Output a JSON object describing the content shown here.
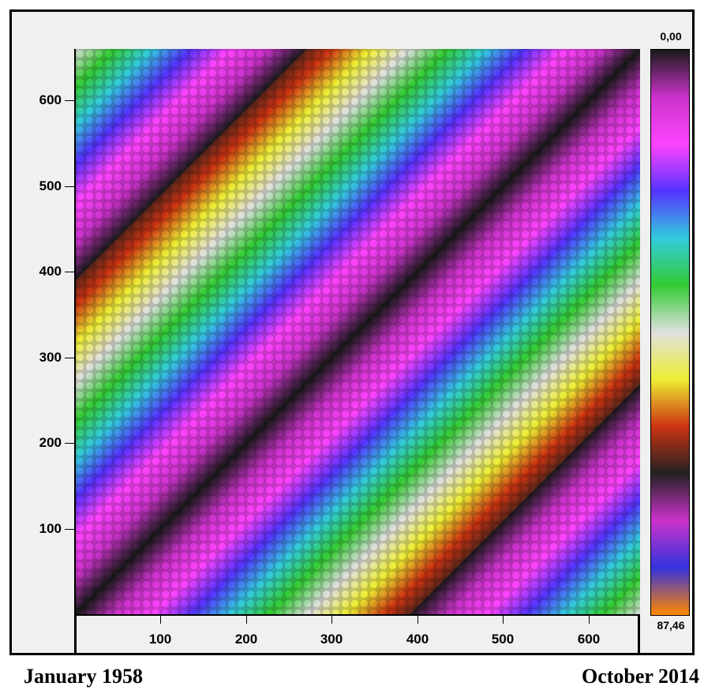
{
  "chart_data": {
    "type": "heatmap",
    "title": "",
    "xlabel": "",
    "ylabel": "",
    "xlim": [
      0,
      660
    ],
    "ylim": [
      0,
      660
    ],
    "x_ticks": [
      "100",
      "200",
      "300",
      "400",
      "500",
      "600"
    ],
    "y_ticks": [
      "100",
      "200",
      "300",
      "400",
      "500",
      "600"
    ],
    "x_tick_values": [
      100,
      200,
      300,
      400,
      500,
      600
    ],
    "y_tick_values": [
      100,
      200,
      300,
      400,
      500,
      600
    ],
    "colorbar": {
      "min_label": "0,00",
      "max_label": "87,46",
      "min": 0.0,
      "max": 87.46,
      "colors": [
        "#1a1a1a",
        "#cc33cc",
        "#ff44ff",
        "#5533ff",
        "#33ccdd",
        "#33cc33",
        "#e0e0e0",
        "#eeee33",
        "#cc3311",
        "#222222",
        "#cc33cc",
        "#3333dd",
        "#ff8800"
      ]
    },
    "description_free_values": {
      "diagonal_value": 0,
      "band_period": 390
    }
  },
  "captions": {
    "left": "January 1958",
    "right": "October 2014"
  }
}
